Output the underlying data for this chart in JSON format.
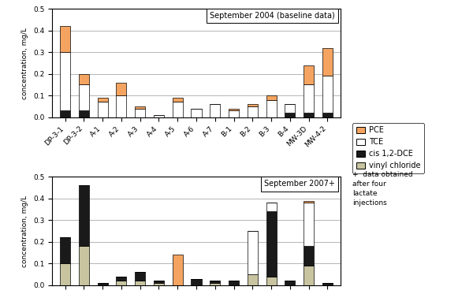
{
  "categories": [
    "DP-3-1",
    "DP-3-2",
    "A-1",
    "A-2",
    "A-3",
    "A-4",
    "A-5",
    "A-6",
    "A-7",
    "B-1",
    "B-2",
    "B-3",
    "B-4",
    "MW-3D",
    "MW-4-2"
  ],
  "chart1_title": "September 2004 (baseline data)",
  "chart2_title": "September 2007+",
  "ylabel": "concentration, mg/L",
  "ylim": [
    0,
    0.5
  ],
  "yticks": [
    0,
    0.1,
    0.2,
    0.3,
    0.4,
    0.5
  ],
  "data_2004": {
    "PCE": [
      0.12,
      0.05,
      0.02,
      0.06,
      0.01,
      0.0,
      0.02,
      0.0,
      0.0,
      0.01,
      0.01,
      0.02,
      0.0,
      0.09,
      0.13
    ],
    "TCE": [
      0.27,
      0.12,
      0.07,
      0.1,
      0.04,
      0.01,
      0.07,
      0.04,
      0.06,
      0.03,
      0.05,
      0.08,
      0.04,
      0.13,
      0.17
    ],
    "cis12DCE": [
      0.03,
      0.03,
      0.0,
      0.0,
      0.0,
      0.0,
      0.0,
      0.0,
      0.0,
      0.0,
      0.0,
      0.0,
      0.02,
      0.02,
      0.02
    ],
    "vinyl_chloride": [
      0.0,
      0.0,
      0.0,
      0.0,
      0.0,
      0.0,
      0.0,
      0.0,
      0.0,
      0.0,
      0.0,
      0.0,
      0.0,
      0.0,
      0.0
    ]
  },
  "data_2007": {
    "PCE": [
      0.0,
      0.0,
      0.0,
      0.0,
      0.0,
      0.0,
      0.14,
      0.0,
      0.0,
      0.0,
      0.0,
      0.0,
      0.0,
      0.01,
      0.0
    ],
    "TCE": [
      0.0,
      0.0,
      0.0,
      0.0,
      0.0,
      0.0,
      0.0,
      0.0,
      0.0,
      0.0,
      0.2,
      0.04,
      0.0,
      0.2,
      0.0
    ],
    "cis12DCE": [
      0.12,
      0.28,
      0.01,
      0.02,
      0.04,
      0.01,
      0.0,
      0.03,
      0.01,
      0.02,
      0.0,
      0.3,
      0.02,
      0.09,
      0.01
    ],
    "vinyl_chloride": [
      0.1,
      0.18,
      0.0,
      0.02,
      0.02,
      0.01,
      0.0,
      0.0,
      0.01,
      0.0,
      0.05,
      0.04,
      0.0,
      0.09,
      0.0
    ]
  },
  "colors": {
    "PCE": "#F4A460",
    "TCE": "#FFFFFF",
    "cis12DCE": "#1A1A1A",
    "vinyl_chloride": "#C8C4A0"
  },
  "legend_labels": [
    "PCE",
    "TCE",
    "cis 1,2-DCE",
    "vinyl chloride"
  ],
  "legend_note": "+  data obtained\nafter four\nlactate\ninjections",
  "bar_width": 0.55,
  "fig_facecolor": "#FFFFFF",
  "axes_facecolor": "#FFFFFF",
  "grid_color": "#999999"
}
